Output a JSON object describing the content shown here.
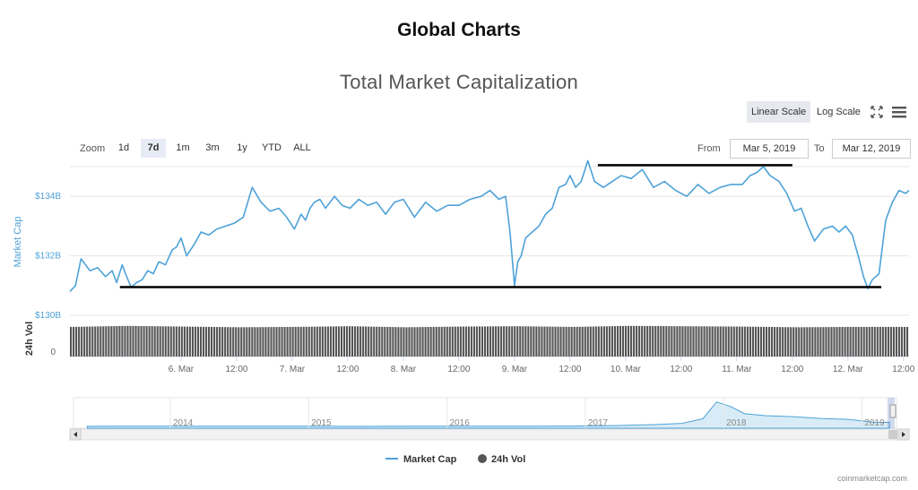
{
  "page": {
    "title": "Global Charts"
  },
  "chart_controls": {
    "title": "Total Market Capitalization",
    "scale_linear": "Linear Scale",
    "scale_log": "Log Scale",
    "zoom_label": "Zoom",
    "zoom_options": [
      "1d",
      "7d",
      "1m",
      "3m",
      "1y",
      "YTD",
      "ALL"
    ],
    "zoom_selected": "7d",
    "from_label": "From",
    "from_value": "Mar 5, 2019",
    "to_label": "To",
    "to_value": "Mar 12, 2019"
  },
  "colors": {
    "market_cap": "#4ea2d8",
    "volume": "#555555",
    "navigator_fill": "#d8ecf7",
    "annotation": "#000000",
    "active_zoom": "#e6ebf5"
  },
  "chart_data": {
    "type": "line",
    "yaxis_left_title": "Market Cap",
    "yaxis_volume_title": "24h Vol",
    "ylim": [
      130,
      135
    ],
    "y_unit": "B",
    "y_ticks": [
      "$134B",
      "$132B",
      "$130B"
    ],
    "vol_ticks": [
      "0"
    ],
    "x_ticks": [
      "6. Mar",
      "12:00",
      "7. Mar",
      "12:00",
      "8. Mar",
      "12:00",
      "9. Mar",
      "12:00",
      "10. Mar",
      "12:00",
      "11. Mar",
      "12:00",
      "12. Mar",
      "12:00"
    ],
    "x_range_days": [
      5.0,
      12.55
    ],
    "series": [
      {
        "name": "Market Cap",
        "type": "line",
        "x": [
          5.0,
          5.05,
          5.1,
          5.18,
          5.25,
          5.32,
          5.38,
          5.42,
          5.47,
          5.5,
          5.55,
          5.6,
          5.65,
          5.7,
          5.75,
          5.8,
          5.86,
          5.92,
          5.96,
          6.0,
          6.05,
          6.12,
          6.18,
          6.25,
          6.32,
          6.4,
          6.48,
          6.56,
          6.64,
          6.72,
          6.8,
          6.88,
          6.95,
          7.02,
          7.08,
          7.12,
          7.16,
          7.2,
          7.25,
          7.3,
          7.38,
          7.45,
          7.52,
          7.6,
          7.68,
          7.76,
          7.84,
          7.92,
          8.0,
          8.1,
          8.2,
          8.3,
          8.4,
          8.5,
          8.6,
          8.7,
          8.78,
          8.86,
          8.92,
          8.96,
          9.0,
          9.03,
          9.06,
          9.1,
          9.16,
          9.22,
          9.28,
          9.34,
          9.4,
          9.46,
          9.5,
          9.55,
          9.6,
          9.66,
          9.72,
          9.8,
          9.88,
          9.96,
          10.05,
          10.15,
          10.25,
          10.35,
          10.45,
          10.55,
          10.65,
          10.75,
          10.85,
          10.95,
          11.05,
          11.12,
          11.18,
          11.24,
          11.3,
          11.38,
          11.45,
          11.52,
          11.58,
          11.64,
          11.7,
          11.78,
          11.86,
          11.92,
          11.98,
          12.04,
          12.1,
          12.14,
          12.18,
          12.22,
          12.28,
          12.34,
          12.4,
          12.46,
          12.52,
          12.55
        ],
        "y": [
          130.8,
          131.0,
          131.9,
          131.5,
          131.6,
          131.3,
          131.5,
          131.1,
          131.7,
          131.4,
          130.95,
          131.1,
          131.2,
          131.5,
          131.4,
          131.8,
          131.7,
          132.2,
          132.3,
          132.6,
          132.0,
          132.4,
          132.8,
          132.7,
          132.9,
          133.0,
          133.1,
          133.3,
          134.3,
          133.8,
          133.5,
          133.6,
          133.3,
          132.9,
          133.4,
          133.2,
          133.6,
          133.8,
          133.9,
          133.6,
          134.0,
          133.7,
          133.6,
          133.9,
          133.7,
          133.8,
          133.4,
          133.8,
          133.9,
          133.3,
          133.8,
          133.5,
          133.7,
          133.7,
          133.9,
          134.0,
          134.2,
          133.9,
          134.0,
          132.8,
          131.0,
          131.8,
          132.0,
          132.6,
          132.8,
          133.0,
          133.4,
          133.6,
          134.3,
          134.4,
          134.7,
          134.3,
          134.5,
          135.2,
          134.5,
          134.3,
          134.5,
          134.7,
          134.6,
          134.9,
          134.3,
          134.5,
          134.2,
          134.0,
          134.4,
          134.1,
          134.3,
          134.4,
          134.4,
          134.7,
          134.8,
          135.0,
          134.7,
          134.5,
          134.1,
          133.5,
          133.6,
          133.0,
          132.5,
          132.9,
          133.0,
          132.8,
          133.0,
          132.7,
          131.9,
          131.3,
          130.9,
          131.2,
          131.4,
          133.2,
          133.8,
          134.2,
          134.1,
          134.2
        ]
      },
      {
        "name": "24h Vol",
        "type": "column",
        "note_levels": [
          0.87,
          0.9,
          0.88,
          0.86,
          0.87,
          0.89,
          0.86,
          0.88,
          0.89,
          0.87,
          0.9,
          0.89,
          0.88,
          0.86,
          0.87,
          0.87
        ]
      }
    ],
    "annotations": [
      {
        "type": "support-line",
        "x": [
          5.45,
          12.3
        ],
        "y": 130.95
      },
      {
        "type": "resistance-line",
        "x": [
          9.75,
          11.5
        ],
        "y": 135.05
      }
    ],
    "navigator": {
      "labels": [
        "2014",
        "2015",
        "2016",
        "2017",
        "2018",
        "2019"
      ],
      "x": [
        2013.4,
        2013.8,
        2014.2,
        2014.6,
        2015.0,
        2015.4,
        2015.8,
        2016.2,
        2016.6,
        2016.9,
        2017.2,
        2017.5,
        2017.7,
        2017.85,
        2017.95,
        2018.05,
        2018.15,
        2018.3,
        2018.5,
        2018.7,
        2018.9,
        2019.1,
        2019.2
      ],
      "y": [
        2,
        8,
        9,
        6,
        5,
        4,
        5,
        8,
        10,
        12,
        25,
        60,
        100,
        250,
        800,
        650,
        420,
        350,
        320,
        260,
        230,
        130,
        135
      ]
    }
  },
  "legend": {
    "market_cap": "Market Cap",
    "vol": "24h Vol"
  },
  "footer": {
    "credit": "coinmarketcap.com"
  },
  "icons": {
    "fullscreen": "fullscreen-icon",
    "menu": "menu-icon"
  }
}
